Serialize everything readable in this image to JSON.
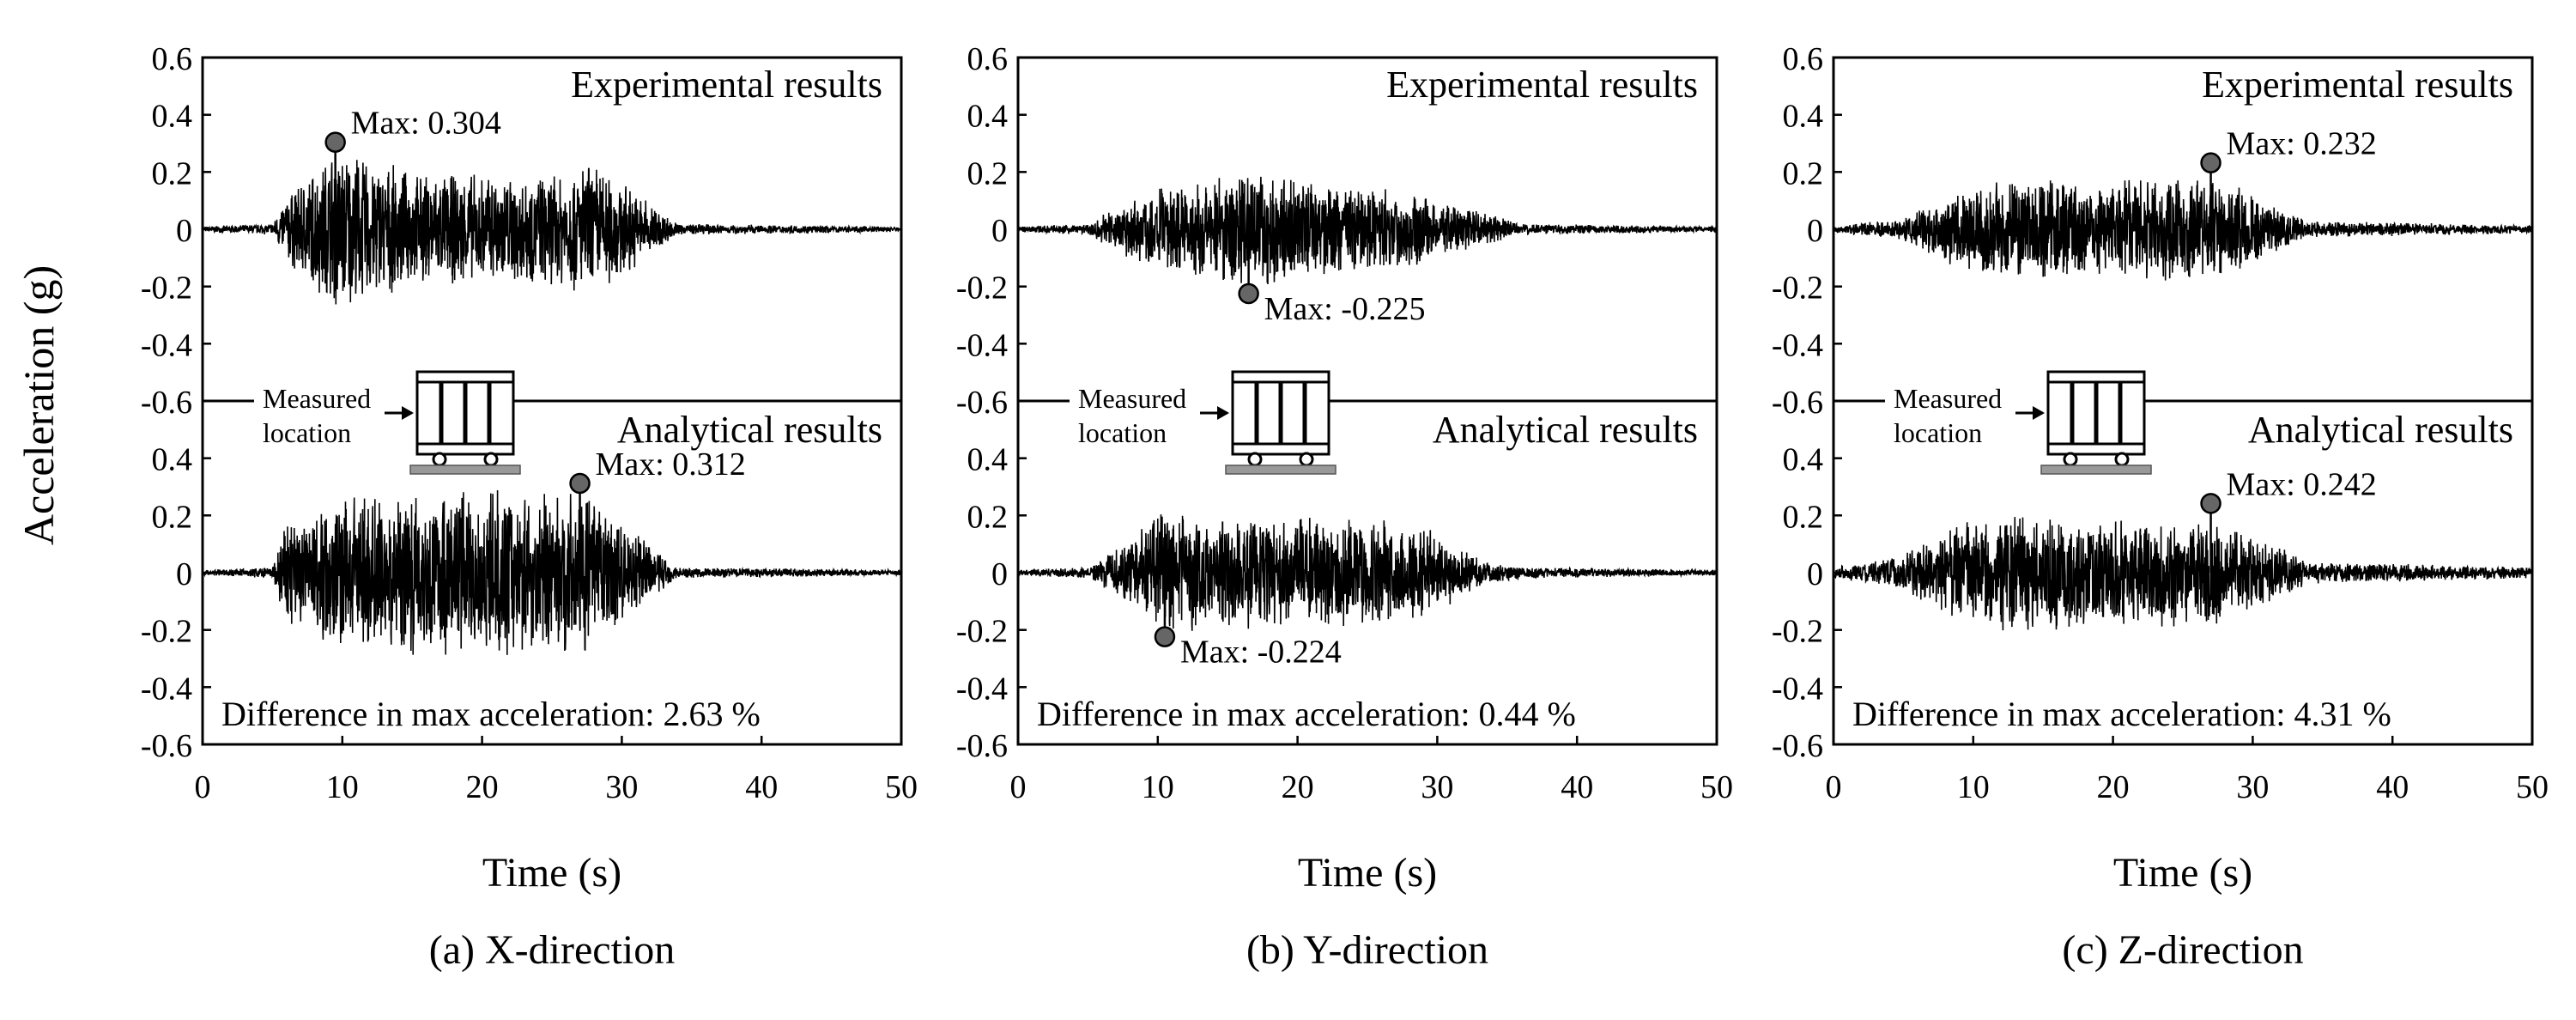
{
  "figure": {
    "ylabel": "Acceleration (g)"
  },
  "chart_data": [
    {
      "type": "line",
      "caption": "(a) X-direction",
      "xlabel": "Time (s)",
      "xlim": [
        0,
        50
      ],
      "x_ticks": [
        0,
        10,
        20,
        30,
        40,
        50
      ],
      "y_ticks": [
        "0.6",
        "0.4",
        "0.2",
        "0",
        "-0.2",
        "-0.4",
        "-0.6",
        "0.4",
        "0.2",
        "0",
        "-0.2",
        "-0.4",
        "-0.6"
      ],
      "ylim_each_subplot": [
        -0.6,
        0.6
      ],
      "series": [
        {
          "name": "Experimental results",
          "envelope": [
            [
              0,
              0.01
            ],
            [
              5,
              0.02
            ],
            [
              6,
              0.12
            ],
            [
              9.5,
              0.3
            ],
            [
              15,
              0.2
            ],
            [
              20,
              0.2
            ],
            [
              25,
              0.2
            ],
            [
              28,
              0.25
            ],
            [
              32,
              0.1
            ],
            [
              34,
              0.02
            ],
            [
              50,
              0.01
            ]
          ],
          "max": {
            "x": 9.5,
            "y": 0.304,
            "label": "Max: 0.304"
          }
        },
        {
          "name": "Analytical results",
          "envelope": [
            [
              0,
              0.01
            ],
            [
              5,
              0.02
            ],
            [
              6,
              0.2
            ],
            [
              10,
              0.28
            ],
            [
              15,
              0.3
            ],
            [
              20,
              0.3
            ],
            [
              25,
              0.28
            ],
            [
              27,
              0.3
            ],
            [
              31,
              0.15
            ],
            [
              34,
              0.02
            ],
            [
              50,
              0.01
            ]
          ],
          "max": {
            "x": 27,
            "y": 0.312,
            "label": "Max: 0.312"
          }
        }
      ],
      "difference_text": "Difference in max acceleration: 2.63 %",
      "inset": {
        "label_line1": "Measured",
        "label_line2": "location"
      }
    },
    {
      "type": "line",
      "caption": "(b) Y-direction",
      "xlabel": "Time (s)",
      "xlim": [
        0,
        50
      ],
      "x_ticks": [
        0,
        10,
        20,
        30,
        40,
        50
      ],
      "y_ticks": [
        "0.6",
        "0.4",
        "0.2",
        "0",
        "-0.2",
        "-0.4",
        "-0.6",
        "0.4",
        "0.2",
        "0",
        "-0.2",
        "-0.4",
        "-0.6"
      ],
      "ylim_each_subplot": [
        -0.6,
        0.6
      ],
      "series": [
        {
          "name": "Experimental results",
          "envelope": [
            [
              0,
              0.01
            ],
            [
              5,
              0.02
            ],
            [
              8,
              0.12
            ],
            [
              12,
              0.18
            ],
            [
              17,
              0.22
            ],
            [
              22,
              0.16
            ],
            [
              27,
              0.15
            ],
            [
              32,
              0.08
            ],
            [
              36,
              0.02
            ],
            [
              50,
              0.01
            ]
          ],
          "max": {
            "x": 16.5,
            "y": -0.225,
            "label": "Max: -0.225"
          }
        },
        {
          "name": "Analytical results",
          "envelope": [
            [
              0,
              0.01
            ],
            [
              5,
              0.02
            ],
            [
              7,
              0.08
            ],
            [
              10,
              0.22
            ],
            [
              15,
              0.2
            ],
            [
              20,
              0.2
            ],
            [
              25,
              0.2
            ],
            [
              30,
              0.15
            ],
            [
              33,
              0.05
            ],
            [
              36,
              0.02
            ],
            [
              50,
              0.01
            ]
          ],
          "max": {
            "x": 10.5,
            "y": -0.224,
            "label": "Max: -0.224"
          }
        }
      ],
      "difference_text": "Difference in max acceleration: 0.44 %",
      "inset": {
        "label_line1": "Measured",
        "label_line2": "location"
      }
    },
    {
      "type": "line",
      "caption": "(c) Z-direction",
      "xlabel": "Time (s)",
      "xlim": [
        0,
        50
      ],
      "x_ticks": [
        0,
        10,
        20,
        30,
        40,
        50
      ],
      "y_ticks": [
        "0.6",
        "0.4",
        "0.2",
        "0",
        "-0.2",
        "-0.4",
        "-0.6",
        "0.4",
        "0.2",
        "0",
        "-0.2",
        "-0.4",
        "-0.6"
      ],
      "ylim_each_subplot": [
        -0.6,
        0.6
      ],
      "series": [
        {
          "name": "Experimental results",
          "envelope": [
            [
              0,
              0.01
            ],
            [
              5,
              0.04
            ],
            [
              8,
              0.12
            ],
            [
              12,
              0.18
            ],
            [
              17,
              0.18
            ],
            [
              22,
              0.18
            ],
            [
              27,
              0.2
            ],
            [
              31,
              0.1
            ],
            [
              34,
              0.03
            ],
            [
              50,
              0.015
            ]
          ],
          "max": {
            "x": 27,
            "y": 0.232,
            "label": "Max: 0.232"
          }
        },
        {
          "name": "Analytical results",
          "envelope": [
            [
              0,
              0.02
            ],
            [
              4,
              0.05
            ],
            [
              8,
              0.15
            ],
            [
              12,
              0.22
            ],
            [
              17,
              0.2
            ],
            [
              22,
              0.2
            ],
            [
              27,
              0.2
            ],
            [
              31,
              0.12
            ],
            [
              34,
              0.04
            ],
            [
              50,
              0.02
            ]
          ],
          "max": {
            "x": 27,
            "y": 0.242,
            "label": "Max: 0.242"
          }
        }
      ],
      "difference_text": "Difference in max acceleration: 4.31 %",
      "inset": {
        "label_line1": "Measured",
        "label_line2": "location"
      }
    }
  ]
}
